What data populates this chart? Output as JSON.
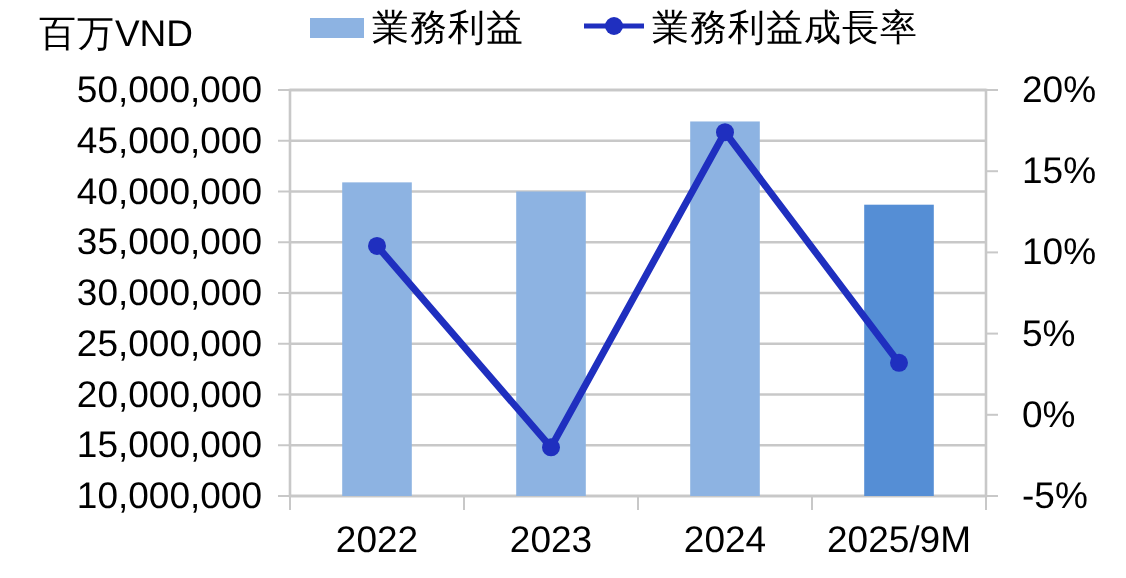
{
  "chart_data": {
    "type": "bar",
    "ylabel": "百万VND",
    "categories": [
      "2022",
      "2023",
      "2024",
      "2025/9M"
    ],
    "series": [
      {
        "name": "業務利益",
        "color": "#8db3e2",
        "colors": [
          "#8db3e2",
          "#8db3e2",
          "#8db3e2",
          "#558ed5"
        ],
        "values": [
          40900000,
          40000000,
          46900000,
          38700000
        ]
      },
      {
        "name": "業務利益成長率",
        "type": "line",
        "axis": "y2",
        "color": "#1f2fbf",
        "marker": "circle",
        "values": [
          10.4,
          -2.0,
          17.4,
          3.2
        ]
      }
    ],
    "ylim": [
      10000000,
      50000000
    ],
    "yticks": [
      {
        "value": 10000000,
        "label": "10,000,000"
      },
      {
        "value": 15000000,
        "label": "15,000,000"
      },
      {
        "value": 20000000,
        "label": "20,000,000"
      },
      {
        "value": 25000000,
        "label": "25,000,000"
      },
      {
        "value": 30000000,
        "label": "30,000,000"
      },
      {
        "value": 35000000,
        "label": "35,000,000"
      },
      {
        "value": 40000000,
        "label": "40,000,000"
      },
      {
        "value": 45000000,
        "label": "45,000,000"
      },
      {
        "value": 50000000,
        "label": "50,000,000"
      }
    ],
    "y2lim": [
      -5,
      20
    ],
    "y2ticks": [
      {
        "value": -5,
        "label": "-5%"
      },
      {
        "value": 0,
        "label": "0%"
      },
      {
        "value": 5,
        "label": "5%"
      },
      {
        "value": 10,
        "label": "10%"
      },
      {
        "value": 15,
        "label": "15%"
      },
      {
        "value": 20,
        "label": "20%"
      }
    ],
    "grid": "y",
    "legend": "top"
  }
}
